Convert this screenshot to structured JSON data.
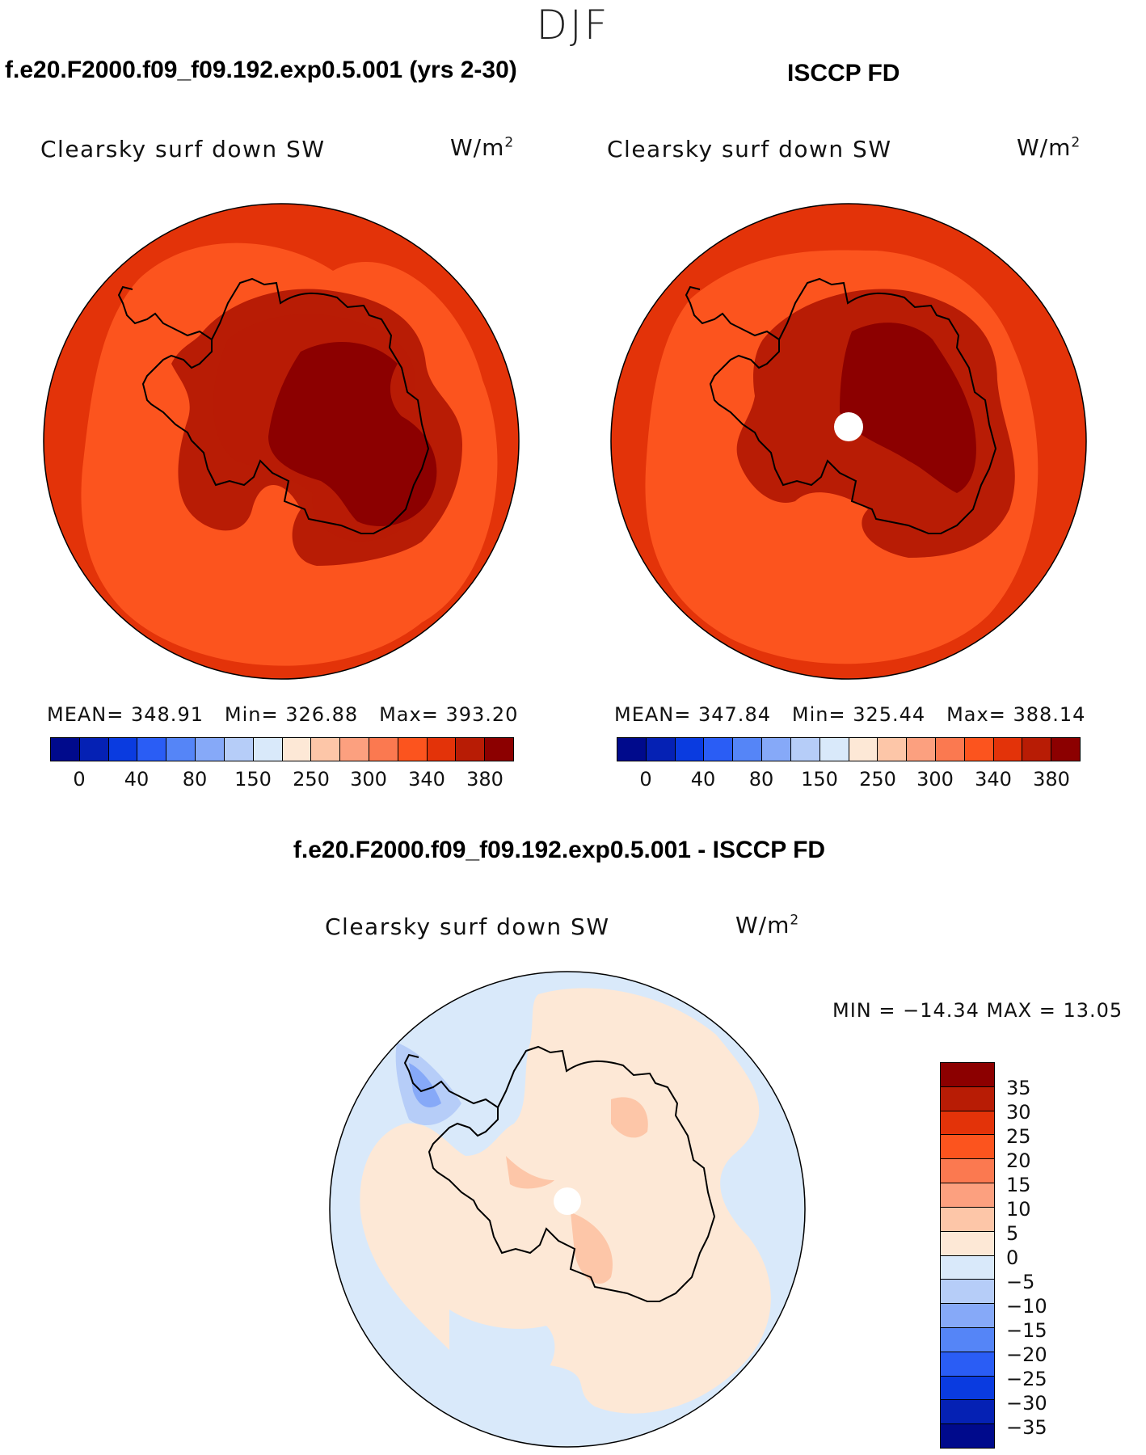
{
  "season": "DJF",
  "panels": [
    {
      "title": "f.e20.F2000.f09_f09.192.exp0.5.001 (yrs 2-30)",
      "variable": "Clearsky surf down SW",
      "units": "W/m",
      "units_exp": "2",
      "mean_label": "MEAN=",
      "mean": "348.91",
      "min_label": "Min=",
      "min": "326.88",
      "max_label": "Max=",
      "max": "393.20"
    },
    {
      "title": "ISCCP FD",
      "variable": "Clearsky surf down SW",
      "units": "W/m",
      "units_exp": "2",
      "mean_label": "MEAN=",
      "mean": "347.84",
      "min_label": "Min=",
      "min": "325.44",
      "max_label": "Max=",
      "max": "388.14"
    }
  ],
  "diff_panel": {
    "title": "f.e20.F2000.f09_f09.192.exp0.5.001 - ISCCP FD",
    "variable": "Clearsky surf down SW",
    "units": "W/m",
    "units_exp": "2",
    "minmax_text": "MIN = −14.34 MAX =   13.05"
  },
  "colorbar_abs": {
    "colors": [
      "#000a8c",
      "#0521b4",
      "#0a3be0",
      "#2a5df5",
      "#5585f7",
      "#86a9f8",
      "#b6cdf8",
      "#d9e9fa",
      "#fde8d6",
      "#fdc6a8",
      "#fca07f",
      "#fb7950",
      "#fc541e",
      "#e33309",
      "#b81c05",
      "#8c0000"
    ],
    "labels": [
      "0",
      "40",
      "80",
      "150",
      "250",
      "300",
      "340",
      "380"
    ]
  },
  "colorbar_diff": {
    "colors_top_to_bottom": [
      "#8c0000",
      "#b81c05",
      "#e33309",
      "#fc541e",
      "#fb7950",
      "#fca07f",
      "#fdc6a8",
      "#fde8d6",
      "#d9e9fa",
      "#b6cdf8",
      "#86a9f8",
      "#5585f7",
      "#2a5df5",
      "#0a3be0",
      "#0521b4",
      "#000a8c"
    ],
    "labels": [
      "35",
      "30",
      "25",
      "20",
      "15",
      "10",
      "5",
      "0",
      "−5",
      "−10",
      "−15",
      "−20",
      "−25",
      "−30",
      "−35"
    ]
  },
  "map_colors": {
    "ocean_far": "#e33309",
    "ocean_near": "#fc541e",
    "ice_edge": "#b81c05",
    "plateau": "#8c0000",
    "diff_pos": "#fde8d6",
    "diff_neg": "#d9e9fa",
    "diff_pos2": "#fdc6a8",
    "diff_neg2": "#b6cdf8",
    "diff_neg3": "#86a9f8"
  }
}
